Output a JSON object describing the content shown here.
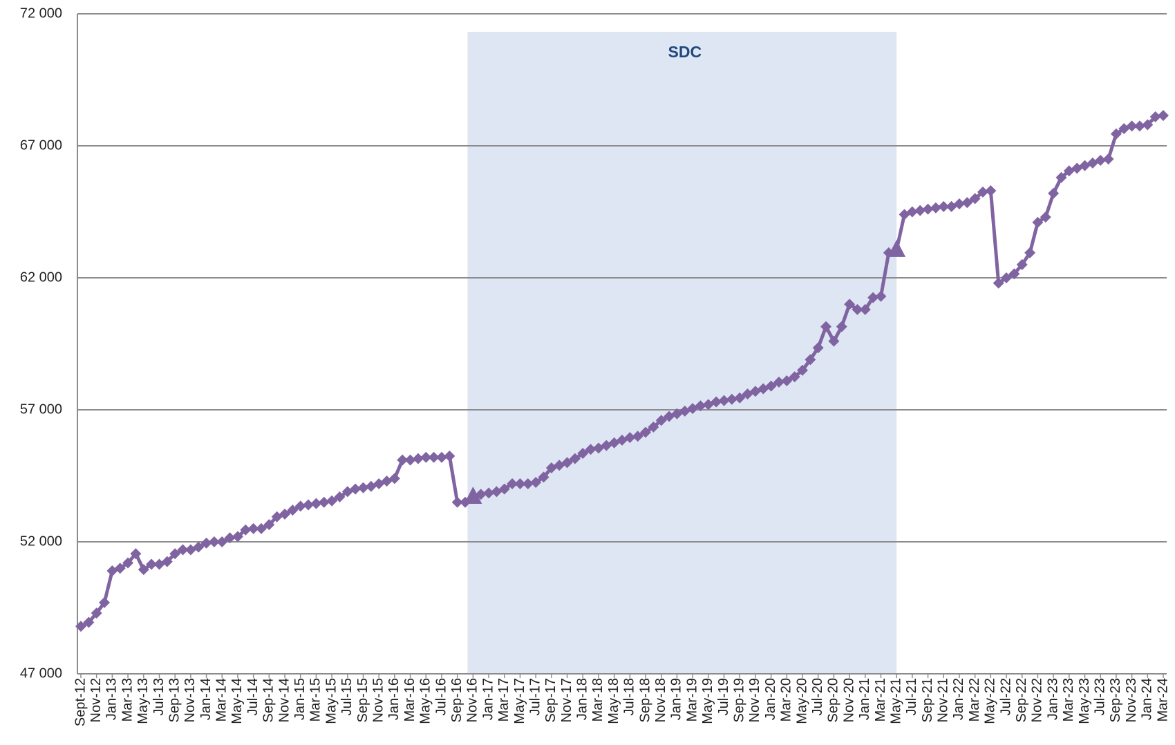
{
  "chart_data": {
    "type": "line",
    "categories": [
      "Sept-12",
      null,
      "Nov-12",
      null,
      "Jan-13",
      null,
      "Mar-13",
      null,
      "May-13",
      null,
      "Jul-13",
      null,
      "Sep-13",
      null,
      "Nov-13",
      null,
      "Jan-14",
      null,
      "Mar-14",
      null,
      "May-14",
      null,
      "Jul-14",
      null,
      "Sep-14",
      null,
      "Nov-14",
      null,
      "Jan-15",
      null,
      "Mar-15",
      null,
      "May-15",
      null,
      "Jul-15",
      null,
      "Sep-15",
      null,
      "Nov-15",
      null,
      "Jan-16",
      null,
      "Mar-16",
      null,
      "May-16",
      null,
      "Jul-16",
      null,
      "Sep-16",
      null,
      "Nov-16",
      null,
      "Jan-17",
      null,
      "Mar-17",
      null,
      "May-17",
      null,
      "Jul-17",
      null,
      "Sep-17",
      null,
      "Nov-17",
      null,
      "Jan-18",
      null,
      "Mar-18",
      null,
      "May-18",
      null,
      "Jul-18",
      null,
      "Sep-18",
      null,
      "Nov-18",
      null,
      "Jan-19",
      null,
      "Mar-19",
      null,
      "May-19",
      null,
      "Jul-19",
      null,
      "Sep-19",
      null,
      "Nov-19",
      null,
      "Jan-20",
      null,
      "Mar-20",
      null,
      "May-20",
      null,
      "Jul-20",
      null,
      "Sep-20",
      null,
      "Nov-20",
      null,
      "Jan-21",
      null,
      "Mar-21",
      null,
      "May-21",
      null,
      "Jul-21",
      null,
      "Sep-21",
      null,
      "Nov-21",
      null,
      "Jan-22",
      null,
      "Mar-22",
      null,
      "May-22",
      null,
      "Jul-22",
      null,
      "Sep-22",
      null,
      "Nov-22",
      null,
      "Jan-23",
      null,
      "Mar-23",
      null,
      "May-23",
      null,
      "Jul-23",
      null,
      "Sep-23",
      null,
      "Nov-23",
      null,
      "Jan-24",
      null,
      "Mar-24"
    ],
    "values": [
      48800,
      48950,
      49300,
      49700,
      50900,
      51000,
      51200,
      51550,
      50950,
      51150,
      51150,
      51250,
      51550,
      51700,
      51700,
      51800,
      51950,
      52000,
      52000,
      52150,
      52200,
      52450,
      52500,
      52500,
      52650,
      52950,
      53050,
      53200,
      53350,
      53400,
      53450,
      53500,
      53550,
      53700,
      53900,
      54000,
      54050,
      54100,
      54200,
      54300,
      54400,
      55100,
      55100,
      55150,
      55200,
      55200,
      55200,
      55250,
      53500,
      53500,
      53700,
      53800,
      53850,
      53900,
      54000,
      54200,
      54200,
      54200,
      54250,
      54450,
      54800,
      54900,
      55000,
      55150,
      55350,
      55500,
      55550,
      55650,
      55750,
      55850,
      55950,
      56000,
      56150,
      56350,
      56600,
      56750,
      56850,
      56950,
      57050,
      57150,
      57200,
      57300,
      57350,
      57400,
      57450,
      57600,
      57700,
      57800,
      57900,
      58050,
      58100,
      58250,
      58500,
      58900,
      59350,
      60150,
      59600,
      60150,
      61000,
      60800,
      60800,
      61250,
      61300,
      62950,
      63050,
      64400,
      64500,
      64550,
      64600,
      64650,
      64700,
      64700,
      64800,
      64850,
      65000,
      65250,
      65300,
      61800,
      62000,
      62150,
      62500,
      62950,
      64100,
      64300,
      65200,
      65800,
      66050,
      66150,
      66250,
      66350,
      66450,
      66500,
      67450,
      67650,
      67750,
      67750,
      67800,
      68100,
      68150
    ],
    "color": "#8064a2",
    "ylim": [
      47000,
      72000
    ],
    "yticks": [
      {
        "value": 47000,
        "label": "47 000"
      },
      {
        "value": 52000,
        "label": "52 000"
      },
      {
        "value": 57000,
        "label": "57 000"
      },
      {
        "value": 62000,
        "label": "62 000"
      },
      {
        "value": 67000,
        "label": "67 000"
      },
      {
        "value": 72000,
        "label": "72 000"
      }
    ],
    "grid": true,
    "shaded_region": {
      "from": "Nov-16",
      "to": "May-21",
      "label": "SDC",
      "color": "#dfe6f3"
    }
  }
}
